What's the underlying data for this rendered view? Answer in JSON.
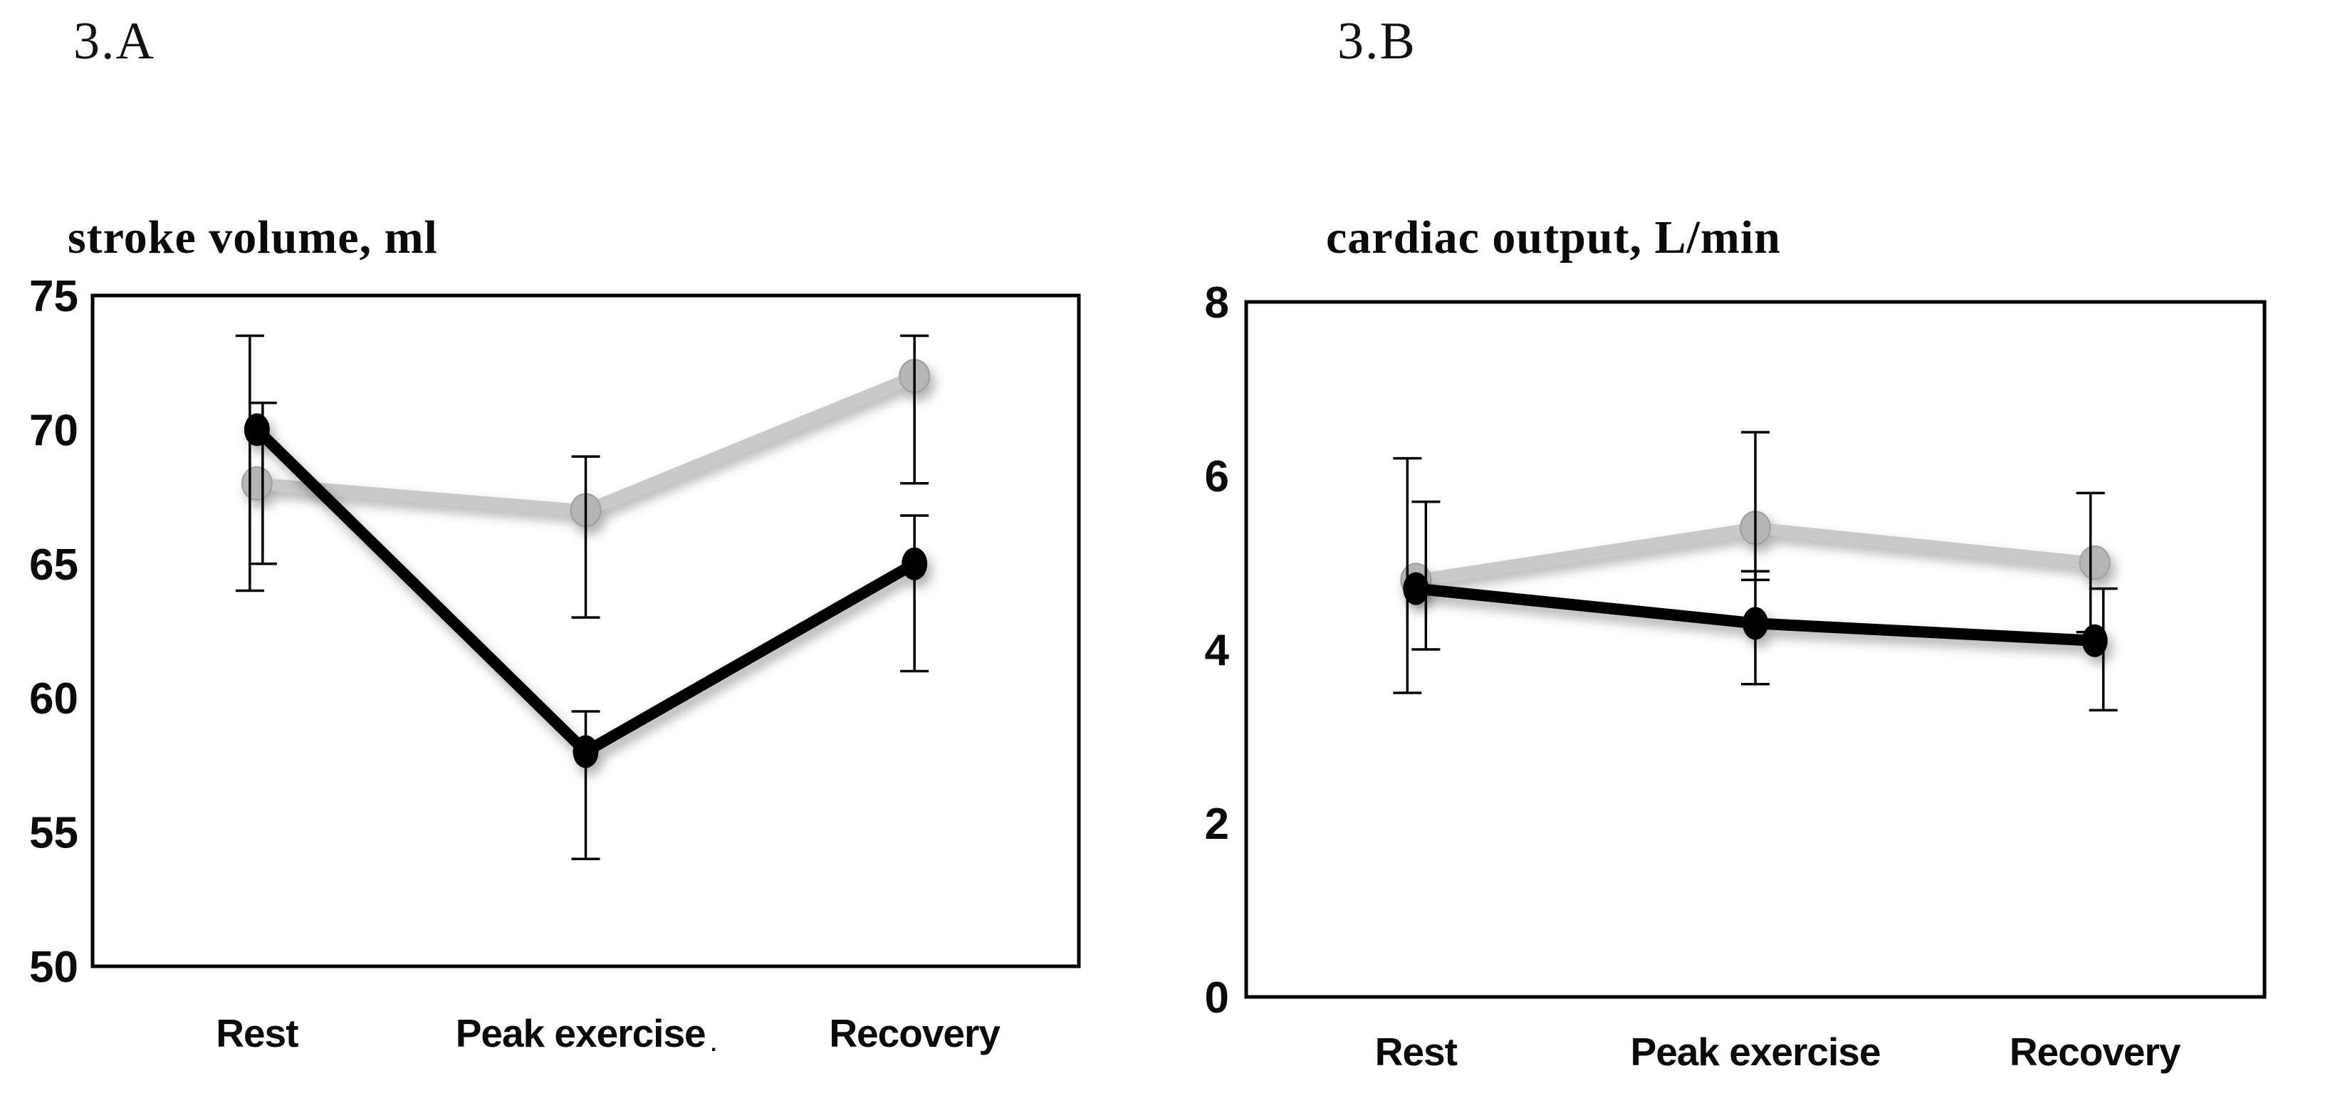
{
  "page": {
    "background": "#ffffff"
  },
  "panels": [
    {
      "label": "3.A",
      "title": "stroke volume, ml"
    },
    {
      "label": "3.B",
      "title": "cardiac output, L/min"
    }
  ],
  "colors": {
    "frame": "#000000",
    "error_bar": "#000000",
    "gray_line": "#c9c9c9",
    "gray_marker": "#b5b5b5",
    "gray_marker_edge": "#9e9e9e",
    "black_line": "#000000",
    "black_marker": "#000000",
    "background": "#ffffff"
  },
  "chart_data": [
    {
      "type": "line",
      "panel_label": "3.A",
      "title": "stroke volume, ml",
      "categories": [
        "Rest",
        "Peak exercise",
        "Recovery"
      ],
      "category_trailing_mark": {
        "after_index": 1,
        "text": "."
      },
      "ylim": [
        50,
        75
      ],
      "yticks": [
        75,
        70,
        65,
        60,
        55,
        50
      ],
      "grid": false,
      "legend_position": "none",
      "error_bars": true,
      "series": [
        {
          "name": "gray-series",
          "color": "#c9c9c9",
          "marker_color": "#b5b5b5",
          "values": [
            68,
            67,
            72
          ],
          "err_low": [
            64,
            63,
            68
          ],
          "err_high": [
            73.5,
            69,
            73.5
          ]
        },
        {
          "name": "black-series",
          "color": "#000000",
          "marker_color": "#000000",
          "values": [
            70,
            58,
            65
          ],
          "err_low": [
            65,
            54,
            61
          ],
          "err_high": [
            71,
            59.5,
            66.8
          ]
        }
      ]
    },
    {
      "type": "line",
      "panel_label": "3.B",
      "title": "cardiac output, L/min",
      "categories": [
        "Rest",
        "Peak exercise",
        "Recovery"
      ],
      "ylim": [
        0,
        8
      ],
      "yticks": [
        8,
        6,
        4,
        2,
        0
      ],
      "grid": false,
      "legend_position": "none",
      "error_bars": true,
      "series": [
        {
          "name": "gray-series",
          "color": "#c9c9c9",
          "marker_color": "#b5b5b5",
          "values": [
            4.8,
            5.4,
            5.0
          ],
          "err_low": [
            3.5,
            4.8,
            4.2
          ],
          "err_high": [
            6.2,
            6.5,
            5.8
          ]
        },
        {
          "name": "black-series",
          "color": "#000000",
          "marker_color": "#000000",
          "values": [
            4.7,
            4.3,
            4.1
          ],
          "err_low": [
            4.0,
            3.6,
            3.3
          ],
          "err_high": [
            5.7,
            4.9,
            4.7
          ]
        }
      ]
    }
  ]
}
